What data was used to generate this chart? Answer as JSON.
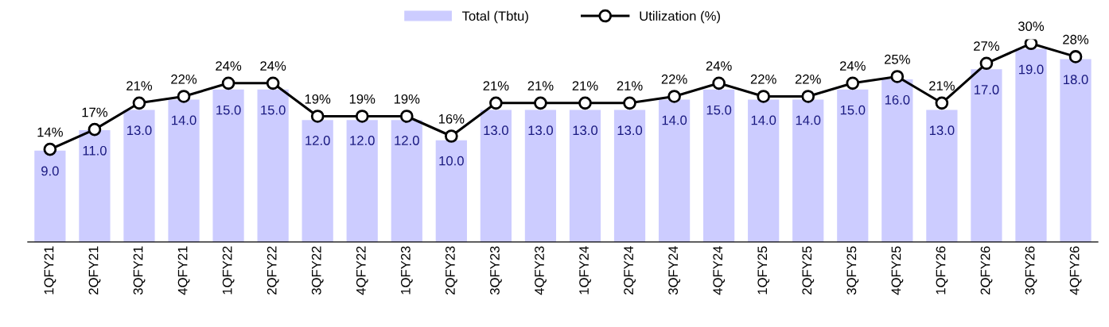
{
  "chart_data": {
    "type": "bar",
    "categories": [
      "1QFY21",
      "2QFY21",
      "3QFY21",
      "4QFY21",
      "1QFY22",
      "2QFY22",
      "3QFY22",
      "4QFY22",
      "1QFY23",
      "2QFY23",
      "3QFY23",
      "4QFY23",
      "1QFY24",
      "2QFY24",
      "3QFY24",
      "4QFY24",
      "1QFY25",
      "2QFY25",
      "3QFY25",
      "4QFY25",
      "1QFY26",
      "2QFY26",
      "3QFY26",
      "4QFY26"
    ],
    "series": [
      {
        "name": "Total (Tbtu)",
        "color": "#ccccff",
        "values": [
          9,
          11,
          13,
          14,
          15,
          15,
          12,
          12,
          12,
          10,
          13,
          13,
          13,
          13,
          14,
          15,
          14,
          14,
          15,
          16,
          13,
          17,
          19,
          18
        ],
        "value_labels": [
          "9.0",
          "11.0",
          "13.0",
          "14.0",
          "15.0",
          "15.0",
          "12.0",
          "12.0",
          "12.0",
          "10.0",
          "13.0",
          "13.0",
          "13.0",
          "13.0",
          "14.0",
          "15.0",
          "14.0",
          "14.0",
          "15.0",
          "16.0",
          "13.0",
          "17.0",
          "19.0",
          "18.0"
        ]
      },
      {
        "name": "Utilization (%)",
        "type": "line",
        "axis": "y2",
        "color": "#000000",
        "marker": "circle",
        "line_style": "solid",
        "values": [
          14,
          17,
          21,
          22,
          24,
          24,
          19,
          19,
          19,
          16,
          21,
          21,
          21,
          21,
          22,
          24,
          22,
          22,
          24,
          25,
          21,
          27,
          30,
          28
        ],
        "value_labels": [
          "14%",
          "17%",
          "21%",
          "22%",
          "24%",
          "24%",
          "19%",
          "19%",
          "19%",
          "16%",
          "21%",
          "21%",
          "21%",
          "21%",
          "22%",
          "24%",
          "22%",
          "22%",
          "24%",
          "25%",
          "21%",
          "27%",
          "30%",
          "28%"
        ]
      }
    ],
    "tick_labels": "x",
    "grid": false,
    "legend": "top"
  }
}
